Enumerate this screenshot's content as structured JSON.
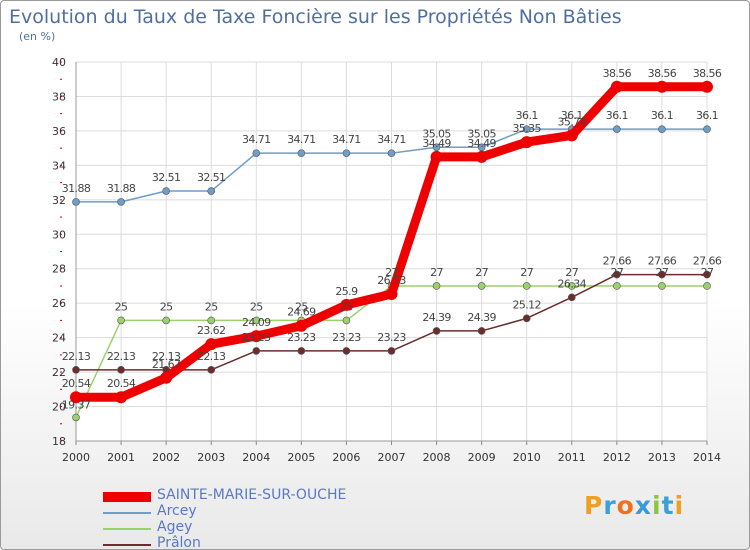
{
  "page": {
    "title": "Evolution du Taux de Taxe Foncière sur les Propriétés Non Bâties",
    "unit": "(en %)",
    "logo": "Proxiti"
  },
  "chart_data": {
    "type": "line",
    "title": "Evolution du Taux de Taxe Foncière sur les Propriétés Non Bâties",
    "ylabel": "(en %)",
    "xlabel": "",
    "ylim": [
      18,
      40
    ],
    "yticks": [
      18,
      20,
      22,
      24,
      26,
      28,
      30,
      32,
      34,
      36,
      38,
      40
    ],
    "grid": true,
    "legend_position": "bottom-left",
    "x": [
      "2000",
      "2001",
      "2002",
      "2003",
      "2004",
      "2005",
      "2006",
      "2007",
      "2008",
      "2009",
      "2010",
      "2011",
      "2012",
      "2013",
      "2014"
    ],
    "series": [
      {
        "name": "Arcey",
        "color": "#6e9dc8",
        "values": [
          31.88,
          31.88,
          32.51,
          32.51,
          34.71,
          34.71,
          34.71,
          34.71,
          35.05,
          35.05,
          36.1,
          36.1,
          36.1,
          36.1,
          36.1
        ],
        "labels": [
          "31.88",
          "31.88",
          "32.51",
          "32.51",
          "34.71",
          "34.71",
          "34.71",
          "34.71",
          "35.05",
          "35.05",
          "36.1",
          "36.1",
          "36.1",
          "36.1",
          "36.1"
        ]
      },
      {
        "name": "Agey",
        "color": "#9ad16a",
        "values": [
          19.37,
          25,
          25,
          25,
          25,
          25,
          25,
          27,
          27,
          27,
          27,
          27,
          27,
          27,
          27
        ],
        "labels": [
          "19.37",
          "25",
          "25",
          "25",
          "25",
          "25",
          "25",
          "27",
          "27",
          "27",
          "27",
          "27",
          "27",
          "27",
          "27"
        ]
      },
      {
        "name": "Prâlon",
        "color": "#6b2d2d",
        "values": [
          22.13,
          22.13,
          22.13,
          22.13,
          23.23,
          23.23,
          23.23,
          23.23,
          24.39,
          24.39,
          25.12,
          26.34,
          27.66,
          27.66,
          27.66
        ],
        "labels": [
          "22.13",
          "22.13",
          "22.13",
          "22.13",
          "23.23",
          "23.23",
          "23.23",
          "23.23",
          "24.39",
          "24.39",
          "25.12",
          "26.34",
          "27.66",
          "27.66",
          "27.66"
        ]
      },
      {
        "name": "SAINTE-MARIE-SUR-OUCHE",
        "color": "#ee0000",
        "values": [
          20.54,
          20.54,
          21.67,
          23.62,
          24.09,
          24.69,
          25.9,
          26.53,
          34.49,
          34.49,
          35.35,
          35.74,
          38.56,
          38.56,
          38.56
        ],
        "labels": [
          "20.54",
          "20.54",
          "21.67",
          "23.62",
          "24.09",
          "24.69",
          "25.9",
          "26.53",
          "34.49",
          "34.49",
          "35.35",
          "35.74",
          "38.56",
          "38.56",
          "38.56"
        ]
      }
    ],
    "legend_order": [
      "SAINTE-MARIE-SUR-OUCHE",
      "Arcey",
      "Agey",
      "Prâlon"
    ]
  }
}
